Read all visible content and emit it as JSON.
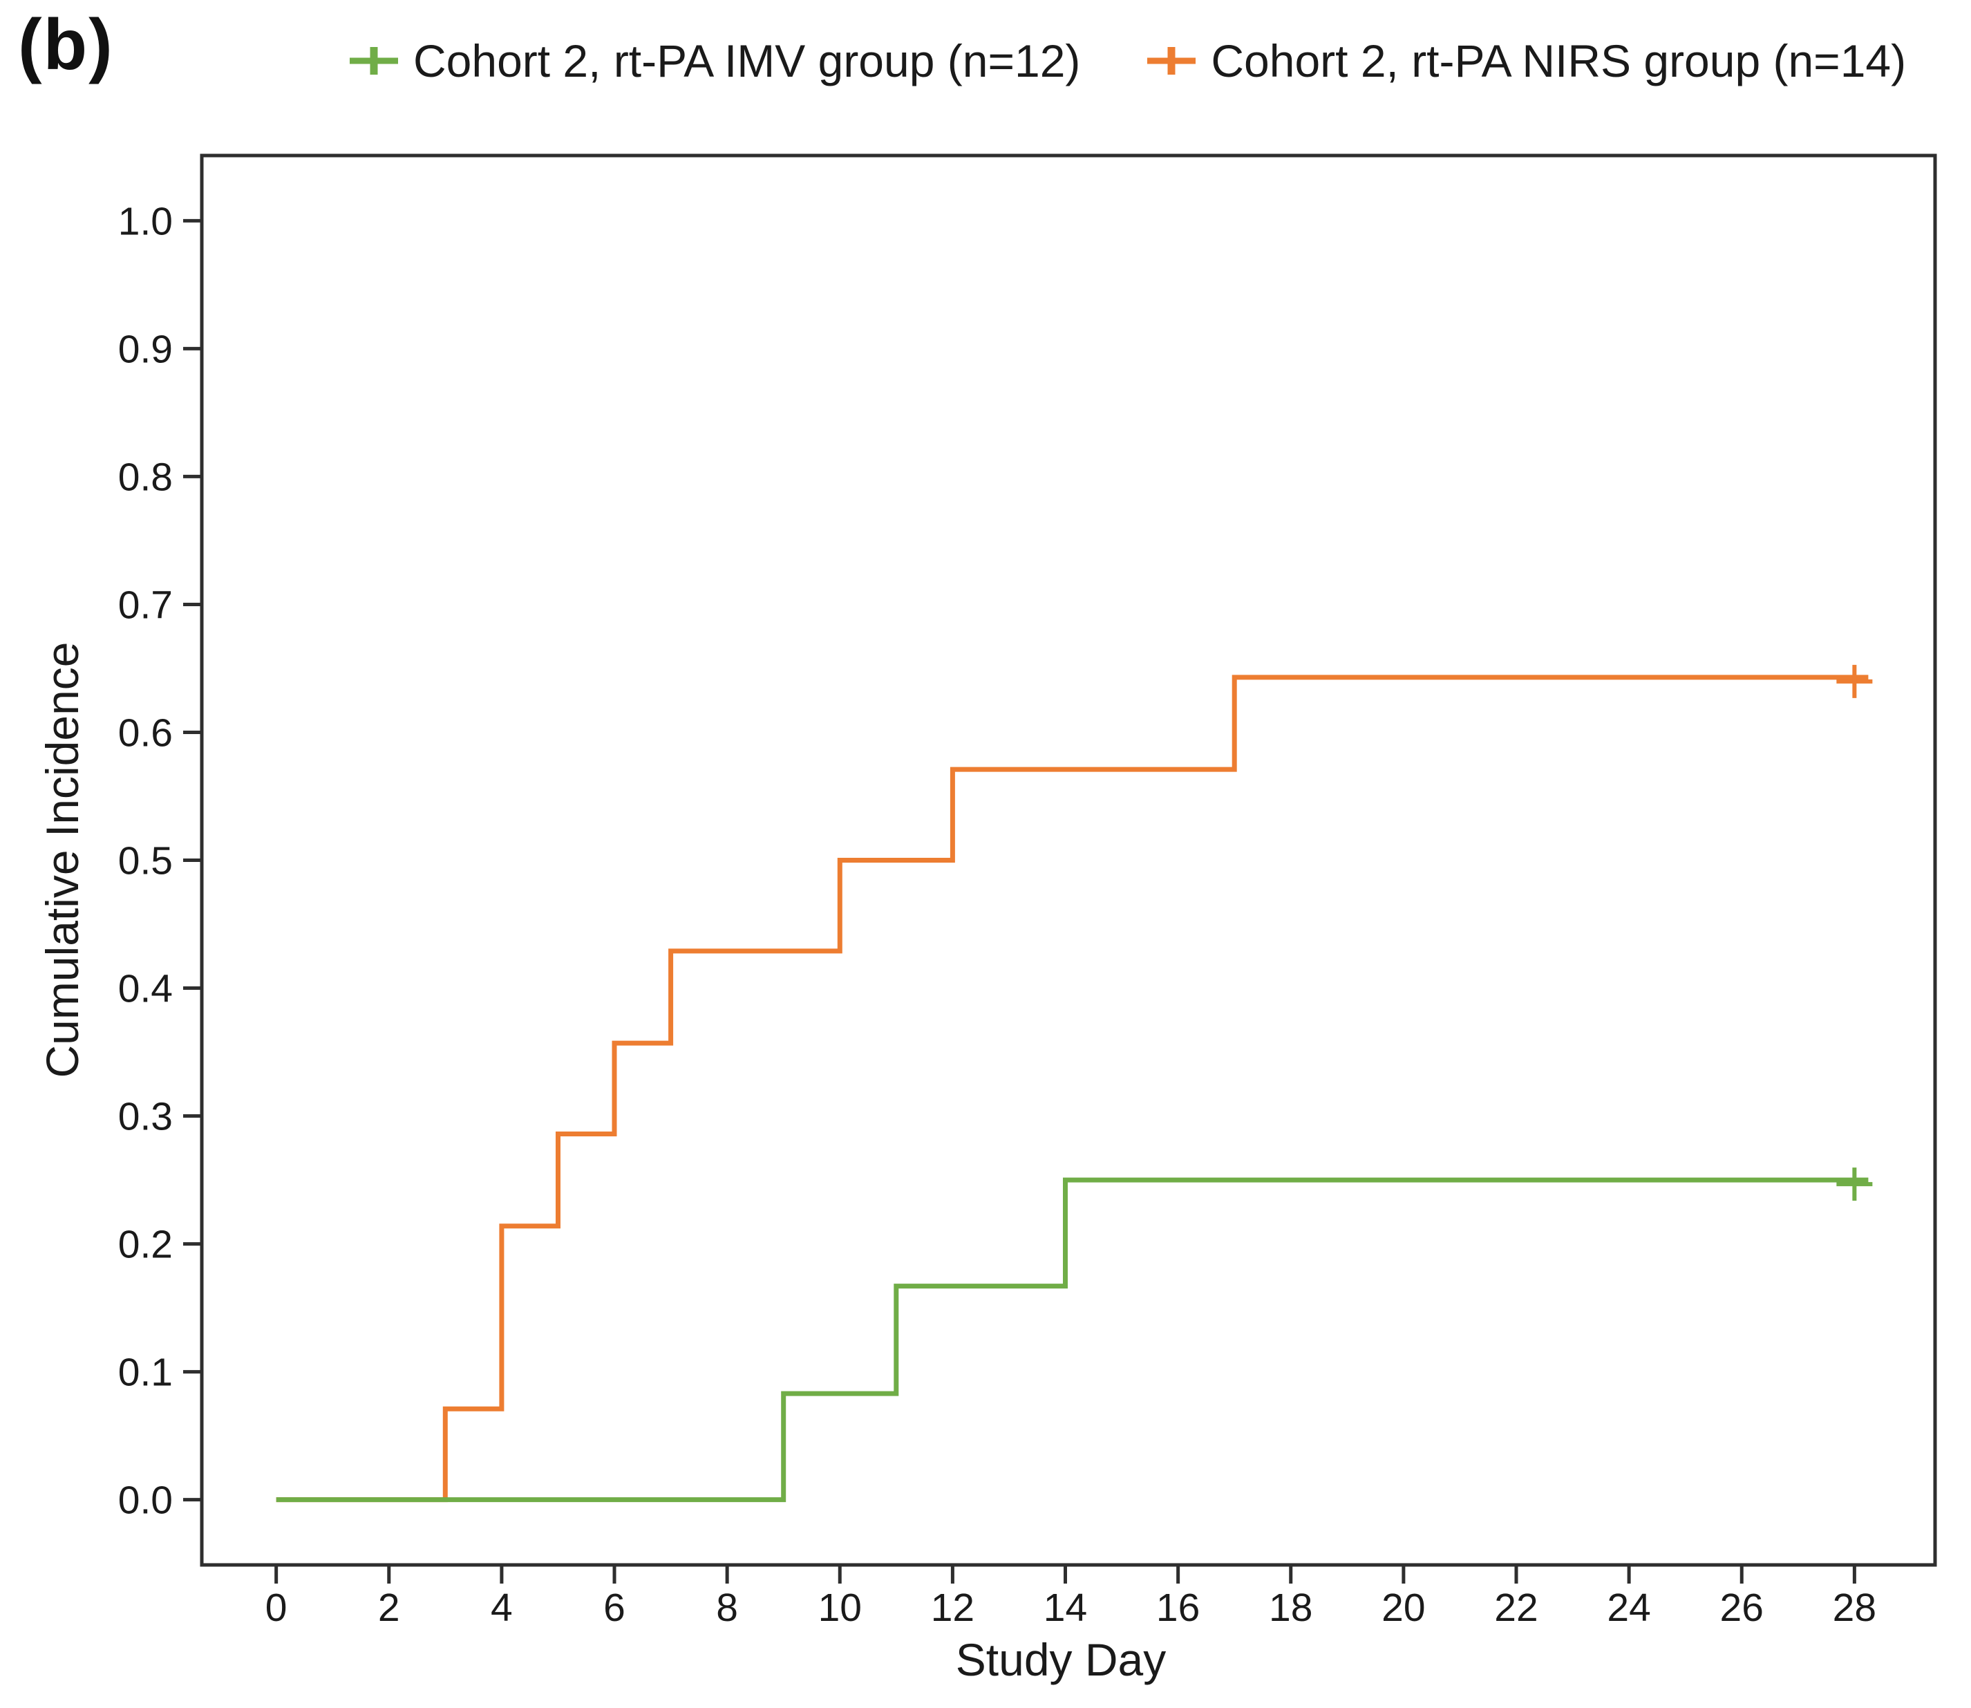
{
  "panel_label": "(b)",
  "legend": {
    "items": [
      {
        "label": "Cohort 2, rt-PA IMV group (n=12)",
        "color": "#70AD47"
      },
      {
        "label": "Cohort 2, rt-PA NIRS group (n=14)",
        "color": "#ED7D31"
      }
    ]
  },
  "chart_data": {
    "type": "line",
    "step_mode": "step-after",
    "title": "",
    "xlabel": "Study Day",
    "ylabel": "Cumulative Incidence",
    "xlim": [
      -1.32,
      29.43
    ],
    "ylim": [
      -0.051,
      1.051
    ],
    "x_ticks": [
      0,
      2,
      4,
      6,
      8,
      10,
      12,
      14,
      16,
      18,
      20,
      22,
      24,
      26,
      28
    ],
    "y_ticks": [
      0.0,
      0.1,
      0.2,
      0.3,
      0.4,
      0.5,
      0.6,
      0.7,
      0.8,
      0.9,
      1.0
    ],
    "grid": false,
    "legend_position": "top",
    "series": [
      {
        "name": "Cohort 2, rt-PA NIRS group (n=14)",
        "color": "#ED7D31",
        "n": 14,
        "steps": [
          [
            0,
            0.0
          ],
          [
            3,
            0.071
          ],
          [
            4,
            0.214
          ],
          [
            5,
            0.286
          ],
          [
            6,
            0.357
          ],
          [
            7,
            0.429
          ],
          [
            10,
            0.5
          ],
          [
            12,
            0.571
          ],
          [
            17,
            0.643
          ],
          [
            28,
            0.643
          ]
        ],
        "censored": [
          [
            28,
            0.643
          ]
        ]
      },
      {
        "name": "Cohort 2, rt-PA IMV group (n=12)",
        "color": "#70AD47",
        "n": 12,
        "steps": [
          [
            0,
            0.0
          ],
          [
            9,
            0.083
          ],
          [
            11,
            0.167
          ],
          [
            14,
            0.25
          ],
          [
            28,
            0.25
          ]
        ],
        "censored": [
          [
            28,
            0.25
          ]
        ]
      }
    ]
  },
  "colors": {
    "axis": "#2e2e2e",
    "text": "#1a1a1a",
    "background": "#ffffff"
  }
}
